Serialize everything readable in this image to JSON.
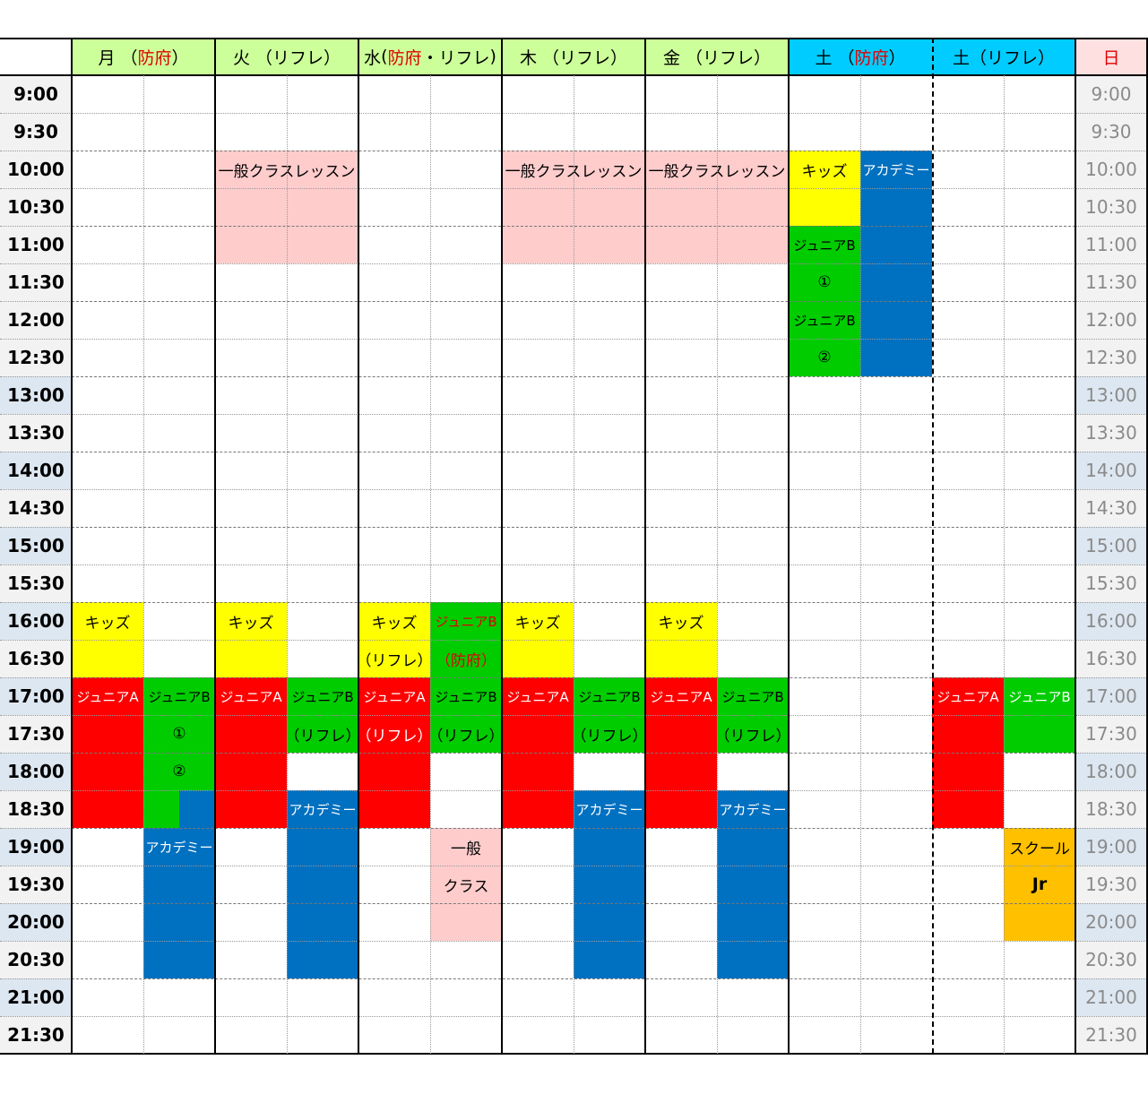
{
  "colors": {
    "header_weekday": "#ccff99",
    "header_saturday": "#00ccff",
    "header_sunday": "#ffe0e0",
    "time_shade": "#dde7f1",
    "time_plain": "#f2f2f2",
    "kids": "#ffff00",
    "junior_a": "#ff0000",
    "junior_b": "#00cc00",
    "academy": "#0070c0",
    "general": "#ffcccc",
    "school_jr": "#ffc000"
  },
  "header": {
    "mon": {
      "day": "月",
      "venue": "防府"
    },
    "tue": {
      "day": "火",
      "venue": "リフレ"
    },
    "wed": {
      "day": "水",
      "venue_a": "防府",
      "sep": "・",
      "venue_b": "リフレ"
    },
    "thu": {
      "day": "木",
      "venue": "リフレ"
    },
    "fri": {
      "day": "金",
      "venue": "リフレ"
    },
    "sat1": {
      "day": "土",
      "venue": "防府"
    },
    "sat2": {
      "day": "土",
      "venue": "リフレ"
    },
    "sun": {
      "day": "日"
    }
  },
  "times": [
    "9:00",
    "9:30",
    "10:00",
    "10:30",
    "11:00",
    "11:30",
    "12:00",
    "12:30",
    "13:00",
    "13:30",
    "14:00",
    "14:30",
    "15:00",
    "15:30",
    "16:00",
    "16:30",
    "17:00",
    "17:30",
    "18:00",
    "18:30",
    "19:00",
    "19:30",
    "20:00",
    "20:30",
    "21:00",
    "21:30"
  ],
  "shaded_times": [
    "13:00",
    "14:00",
    "15:00",
    "16:00",
    "17:00",
    "18:00",
    "19:00",
    "20:00",
    "21:00"
  ],
  "labels": {
    "general_lesson": "一般クラスレッスン",
    "kids": "キッズ",
    "academy": "アカデミー",
    "junior_a": "ジュニアA",
    "junior_b": "ジュニアB",
    "circle_1": "①",
    "circle_2": "②",
    "refre": "（リフレ）",
    "hofu": "（防府）",
    "general": "一般",
    "class": "クラス",
    "school": "スクール",
    "jr": "Jr"
  }
}
